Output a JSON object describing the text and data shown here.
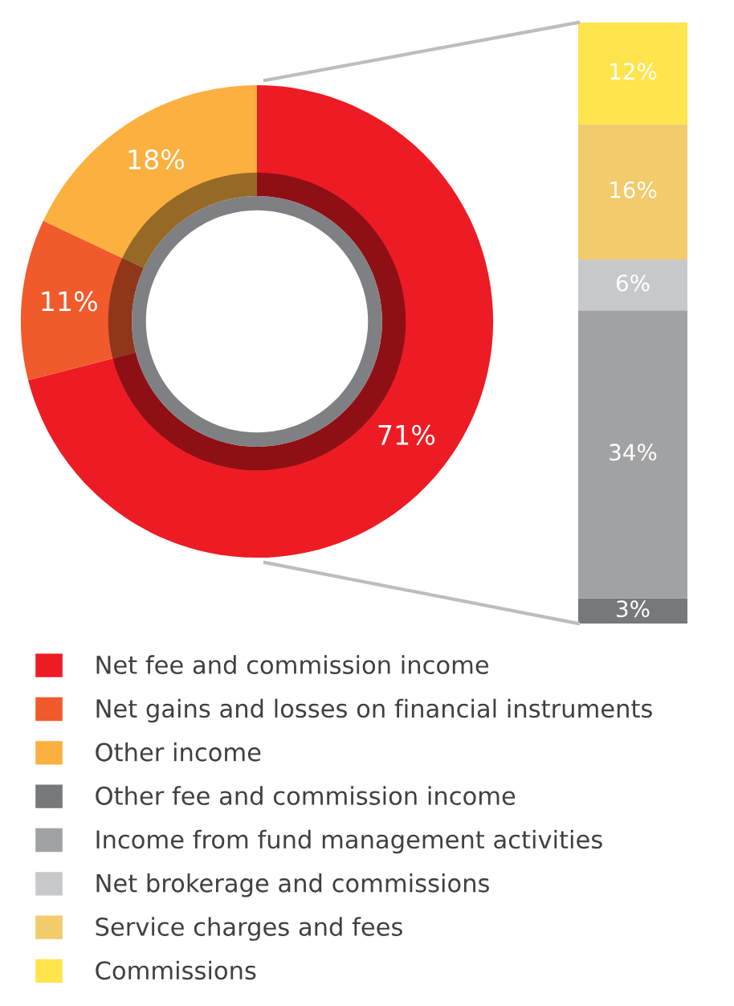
{
  "chart_data": [
    {
      "type": "donut",
      "categories": [
        "Net fee and commission income",
        "Net gains and losses on financial instruments",
        "Other income"
      ],
      "values": [
        71,
        11,
        18
      ],
      "colors": [
        "#ed1c24",
        "#f15a2b",
        "#fbb040"
      ],
      "value_labels": [
        "71%",
        "11%",
        "18%"
      ],
      "legend": "bottom"
    },
    {
      "type": "bar",
      "stacked": true,
      "categories": [
        null
      ],
      "series": [
        {
          "name": "Other fee and commission income",
          "color": "#77787b",
          "values": [
            3
          ],
          "value_labels": [
            "3%"
          ]
        },
        {
          "name": "Income from fund management activities",
          "color": "#a1a2a3",
          "values": [
            34
          ],
          "value_labels": [
            "34%"
          ]
        },
        {
          "name": "Net brokerage and commissions",
          "color": "#c7c8ca",
          "values": [
            6
          ],
          "value_labels": [
            "6%"
          ]
        },
        {
          "name": "Service charges and fees",
          "color": "#f2cb6c",
          "values": [
            16
          ],
          "value_labels": [
            "16%"
          ]
        },
        {
          "name": "Commissions",
          "color": "#ffe44d",
          "values": [
            12
          ],
          "value_labels": [
            "12%"
          ]
        }
      ],
      "legend": "bottom"
    }
  ]
}
